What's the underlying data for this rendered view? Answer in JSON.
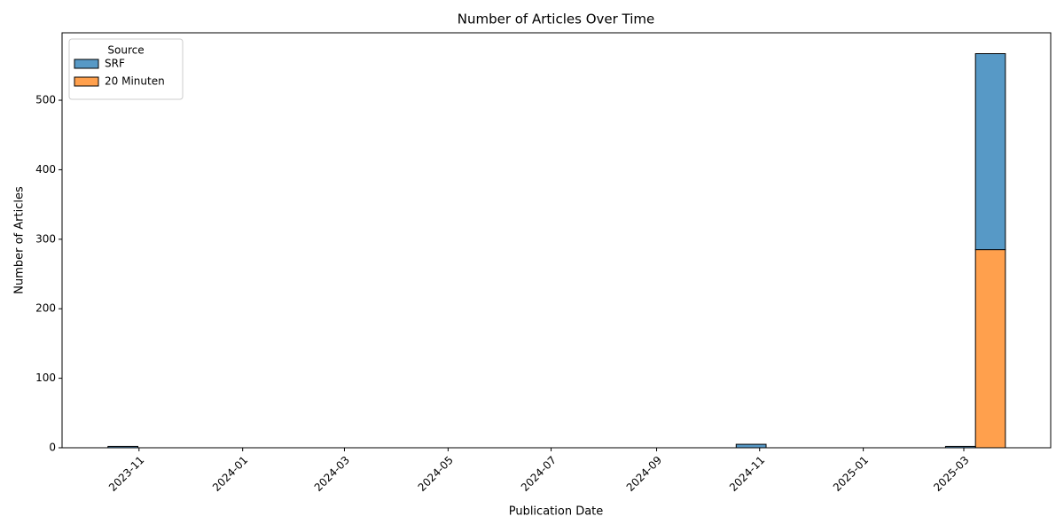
{
  "chart_data": {
    "type": "histogram",
    "title": "Number of Articles Over Time",
    "x_label": "Publication Date",
    "y_label": "Number of Articles",
    "legend_title": "Source",
    "legend_position": "upper left",
    "stacked": true,
    "bins": [
      2023.783,
      2023.8312,
      2023.8794,
      2023.9276,
      2023.9758,
      2024.024,
      2024.0722,
      2024.1204,
      2024.1686,
      2024.2168,
      2024.265,
      2024.3132,
      2024.3614,
      2024.4096,
      2024.4578,
      2024.506,
      2024.5542,
      2024.6024,
      2024.6506,
      2024.6988,
      2024.747,
      2024.7952,
      2024.8434,
      2024.8916,
      2024.9398,
      2024.988,
      2025.0362,
      2025.0844,
      2025.1326,
      2025.1808,
      2025.229
    ],
    "series": [
      {
        "name": "SRF",
        "color": "#5799c6",
        "values": [
          2,
          0,
          0,
          0,
          0,
          0,
          0,
          0,
          0,
          0,
          0,
          0,
          0,
          0,
          0,
          0,
          0,
          0,
          0,
          0,
          0,
          5,
          0,
          0,
          0,
          0,
          0,
          0,
          2,
          282
        ]
      },
      {
        "name": "20 Minuten",
        "color": "#ffa04d",
        "values": [
          0,
          0,
          0,
          0,
          0,
          0,
          0,
          0,
          0,
          0,
          0,
          0,
          0,
          0,
          0,
          0,
          0,
          0,
          0,
          0,
          0,
          0,
          0,
          0,
          0,
          0,
          0,
          0,
          0,
          285
        ]
      }
    ],
    "xlim": [
      2023.709,
      2025.302
    ],
    "xticks": [
      {
        "value": 2023.833,
        "label": "2023-11"
      },
      {
        "value": 2024.0,
        "label": "2024-01"
      },
      {
        "value": 2024.164,
        "label": "2024-03"
      },
      {
        "value": 2024.331,
        "label": "2024-05"
      },
      {
        "value": 2024.497,
        "label": "2024-07"
      },
      {
        "value": 2024.667,
        "label": "2024-09"
      },
      {
        "value": 2024.833,
        "label": "2024-11"
      },
      {
        "value": 2025.0,
        "label": "2025-01"
      },
      {
        "value": 2025.162,
        "label": "2025-03"
      }
    ],
    "ylim": [
      0,
      597
    ],
    "yticks": [
      0,
      100,
      200,
      300,
      400,
      500
    ]
  }
}
